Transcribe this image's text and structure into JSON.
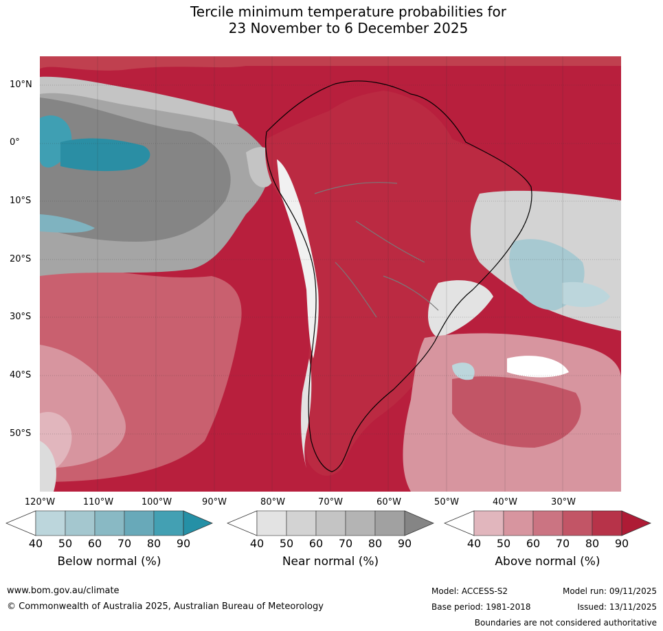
{
  "title": {
    "line1": "Tercile minimum temperature probabilities for",
    "line2": "23 November to 6 December 2025"
  },
  "axes": {
    "lat_labels": [
      "10°N",
      "0°",
      "10°S",
      "20°S",
      "30°S",
      "40°S",
      "50°S"
    ],
    "lon_labels": [
      "120°W",
      "110°W",
      "100°W",
      "90°W",
      "80°W",
      "70°W",
      "60°W",
      "50°W",
      "40°W",
      "30°W"
    ]
  },
  "colorbars": [
    {
      "label": "Below normal (%)",
      "ticks": [
        "40",
        "50",
        "60",
        "70",
        "80",
        "90"
      ],
      "colors": [
        "#ffffff",
        "#bcd6dc",
        "#a4c7cf",
        "#89b9c4",
        "#68a9b9",
        "#43a0b3",
        "#2590a6"
      ]
    },
    {
      "label": "Near normal (%)",
      "ticks": [
        "40",
        "50",
        "60",
        "70",
        "80",
        "90"
      ],
      "colors": [
        "#ffffff",
        "#e3e3e3",
        "#d3d3d3",
        "#c4c4c4",
        "#b4b4b4",
        "#a1a1a1",
        "#858585"
      ]
    },
    {
      "label": "Above normal (%)",
      "ticks": [
        "40",
        "50",
        "60",
        "70",
        "80",
        "90"
      ],
      "colors": [
        "#ffffff",
        "#e1b6bd",
        "#d7959f",
        "#cb7482",
        "#c25566",
        "#b73349",
        "#ae1b35"
      ]
    }
  ],
  "footer": {
    "website": "www.bom.gov.au/climate",
    "copyright": "© Commonwealth of Australia 2025, Australian Bureau of Meteorology",
    "model": "Model: ACCESS-S2",
    "model_run": "Model run: 09/11/2025",
    "base_period": "Base period: 1981-2018",
    "issued": "Issued: 13/11/2025",
    "disclaimer": "Boundaries are not considered authoritative"
  }
}
